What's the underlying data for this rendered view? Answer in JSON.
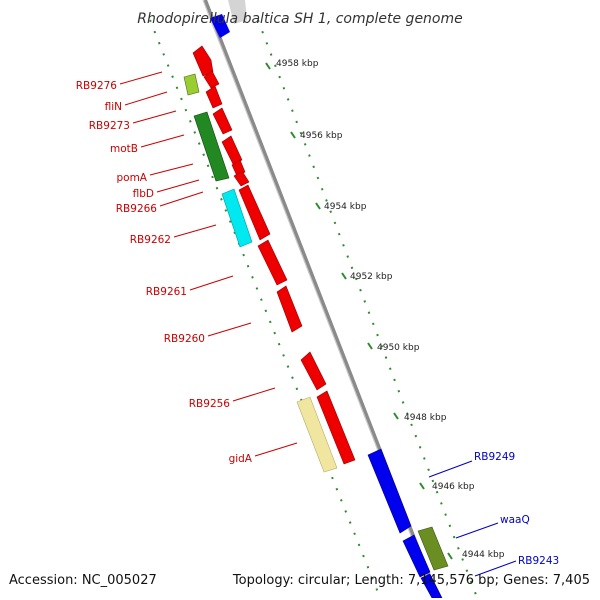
{
  "title": "Rhodopirellula baltica SH 1, complete genome",
  "footer": {
    "accession": "Accession: NC_005027",
    "topology": "Topology: circular; Length: 7,145,576 bp; Genes: 7,405"
  },
  "colors": {
    "backbone": "#8a8a8a",
    "tick_forward": "#2e8b2e",
    "tick_reverse": "#2e8b2e",
    "label_forward": "#cc0000",
    "label_reverse": "#0000cc",
    "red_gene": "#ee0000",
    "blue_gene": "#0000ee",
    "dark_green_gene": "#228822",
    "cyan_gene": "#00e8f0",
    "khaki_gene": "#f0e6a0",
    "olive_gene": "#6b8e23",
    "lime_gene": "#9acd32"
  },
  "kbp_labels": [
    "4958 kbp",
    "4956 kbp",
    "4954 kbp",
    "4952 kbp",
    "4950 kbp",
    "4948 kbp",
    "4946 kbp",
    "4944 kbp"
  ],
  "gene_labels_left": [
    "RB9276",
    "fliN",
    "RB9273",
    "motB",
    "pomA",
    "flbD",
    "RB9266",
    "RB9262",
    "RB9261",
    "RB9260",
    "RB9256",
    "gidA"
  ],
  "gene_labels_right": [
    "RB9249",
    "waaQ",
    "RB9243"
  ]
}
